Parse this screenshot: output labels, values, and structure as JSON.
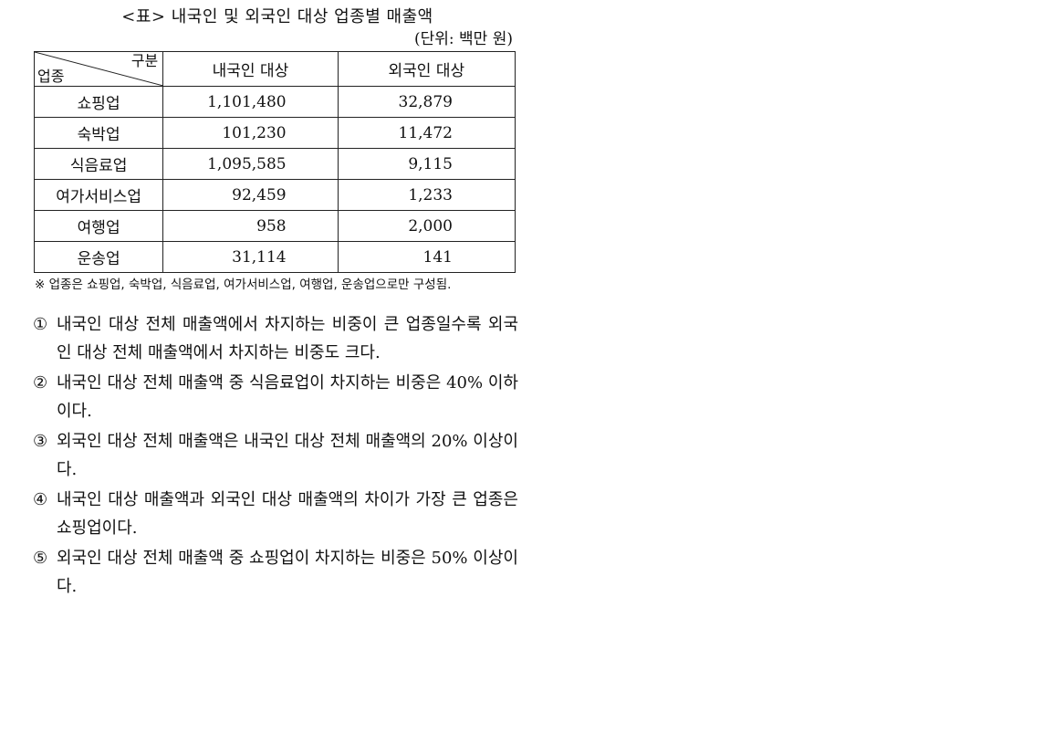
{
  "table_title": "<표> 내국인 및 외국인 대상 업종별 매출액",
  "unit_label": "(단위: 백만 원)",
  "header": {
    "corner_top": "구분",
    "corner_bottom": "업종",
    "domestic": "내국인 대상",
    "foreign": "외국인 대상"
  },
  "rows": [
    {
      "category": "쇼핑업",
      "domestic": "1,101,480",
      "foreign": "32,879"
    },
    {
      "category": "숙박업",
      "domestic": "101,230",
      "foreign": "11,472"
    },
    {
      "category": "식음료업",
      "domestic": "1,095,585",
      "foreign": "9,115"
    },
    {
      "category": "여가서비스업",
      "domestic": "92,459",
      "foreign": "1,233"
    },
    {
      "category": "여행업",
      "domestic": "958",
      "foreign": "2,000"
    },
    {
      "category": "운송업",
      "domestic": "31,114",
      "foreign": "141"
    }
  ],
  "note": "※ 업종은 쇼핑업, 숙박업, 식음료업, 여가서비스업, 여행업, 운송업으로만 구성됨.",
  "options": [
    {
      "num": "①",
      "text": "내국인 대상 전체 매출액에서 차지하는 비중이 큰 업종일수록 외국인 대상 전체 매출액에서 차지하는 비중도 크다."
    },
    {
      "num": "②",
      "text": "내국인 대상 전체 매출액 중 식음료업이 차지하는 비중은 40% 이하이다."
    },
    {
      "num": "③",
      "text": "외국인 대상 전체 매출액은 내국인 대상 전체 매출액의 20% 이상이다."
    },
    {
      "num": "④",
      "text": "내국인 대상 매출액과 외국인 대상 매출액의 차이가 가장 큰 업종은 쇼핑업이다."
    },
    {
      "num": "⑤",
      "text": "외국인 대상 전체 매출액 중 쇼핑업이 차지하는 비중은 50% 이상이다."
    }
  ]
}
